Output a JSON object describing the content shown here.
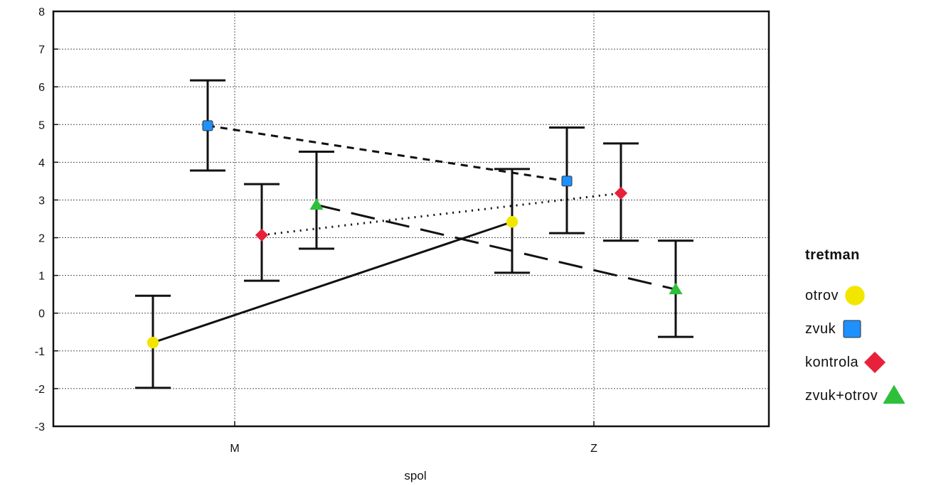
{
  "chart_data": {
    "type": "line",
    "title": "",
    "xlabel": "spol",
    "ylabel": "",
    "categories": [
      "M",
      "Z"
    ],
    "ylim": [
      -3,
      8
    ],
    "yticks": [
      "-3",
      "-2",
      "-1",
      "0",
      "1",
      "2",
      "3",
      "4",
      "5",
      "6",
      "7",
      "8"
    ],
    "grid": true,
    "legend_title": "tretman",
    "legend_position": "right",
    "series": [
      {
        "name": "otrov",
        "color": "#f2e600",
        "marker": "circle",
        "line": "solid",
        "values": [
          -0.78,
          2.42
        ],
        "lower": [
          -1.98,
          1.07
        ],
        "upper": [
          0.46,
          3.82
        ]
      },
      {
        "name": "zvuk",
        "color": "#1e90ff",
        "marker": "square",
        "line": "dashed",
        "values": [
          4.97,
          3.5
        ],
        "lower": [
          3.78,
          2.12
        ],
        "upper": [
          6.17,
          4.92
        ]
      },
      {
        "name": "kontrola",
        "color": "#e8213a",
        "marker": "diamond",
        "line": "dotted",
        "values": [
          2.07,
          3.18
        ],
        "lower": [
          0.86,
          1.92
        ],
        "upper": [
          3.42,
          4.5
        ]
      },
      {
        "name": "zvuk+otrov",
        "color": "#2fbf3a",
        "marker": "triangle",
        "line": "longdash",
        "values": [
          2.87,
          0.63
        ],
        "lower": [
          1.71,
          -0.63
        ],
        "upper": [
          4.28,
          1.92
        ]
      }
    ]
  }
}
